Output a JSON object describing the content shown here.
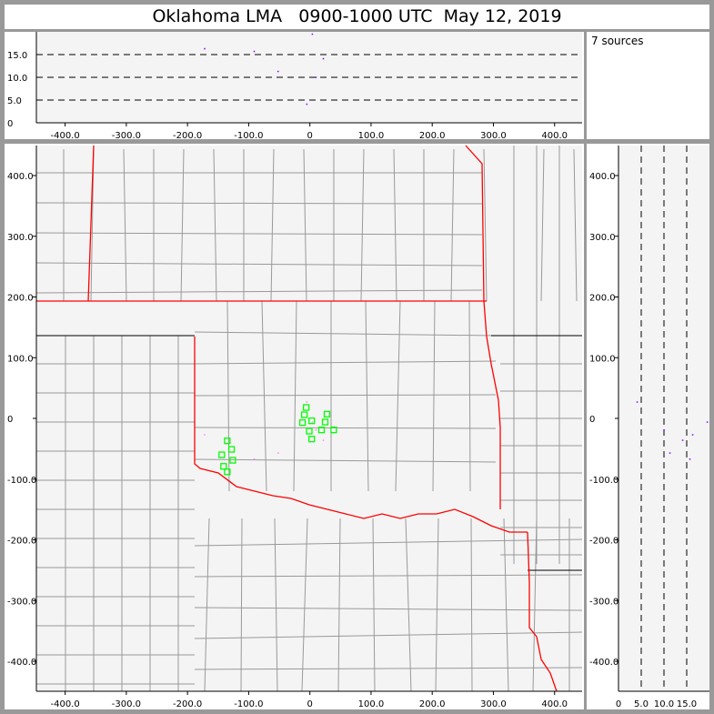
{
  "title": "Oklahoma LMA   0900-1000 UTC  May 12, 2019",
  "info": {
    "source_count_label": "7 sources"
  },
  "colors": {
    "background_panel": "#f4f4f4",
    "frame": "#999999",
    "state_border": "#ff0000",
    "county_line": "#999999",
    "station": "#00ff00",
    "source": "#8000ff"
  },
  "chart_data": [
    {
      "type": "scatter",
      "panel": "altitude-vs-east-west",
      "xlim": [
        -447,
        445
      ],
      "ylim": [
        0,
        20
      ],
      "x_ticks": [
        "-400.0",
        "-300.0",
        "-200.0",
        "-100.0",
        "0",
        "100.0",
        "200.0",
        "300.0",
        "400.0"
      ],
      "y_ticks": [
        "0",
        "5.0",
        "10.0",
        "15.0"
      ],
      "grid": "dashed at 5, 10, 15",
      "points": [
        [
          -172,
          16.3
        ],
        [
          -91,
          15.7
        ],
        [
          4,
          19.5
        ],
        [
          22,
          14.1
        ],
        [
          -52,
          11.3
        ],
        [
          10,
          10.0
        ],
        [
          -5,
          4.1
        ]
      ]
    },
    {
      "type": "scatter",
      "panel": "plan-view-map",
      "xlim": [
        -447,
        445
      ],
      "ylim": [
        -449,
        449
      ],
      "x_ticks": [
        "-400.0",
        "-300.0",
        "-200.0",
        "-100.0",
        "0",
        "100.0",
        "200.0",
        "300.0",
        "400.0"
      ],
      "y_ticks": [
        "400.0",
        "300.0",
        "200.0",
        "100.0",
        "0",
        "-100.0",
        "-200.0",
        "-300.0",
        "-400.0"
      ],
      "sources": [
        [
          -172,
          -27
        ],
        [
          -91,
          -67
        ],
        [
          4,
          -6
        ],
        [
          22,
          -36
        ],
        [
          -52,
          -57
        ],
        [
          10,
          -19
        ],
        [
          -5,
          27
        ]
      ],
      "stations": [
        [
          -6,
          18
        ],
        [
          -9,
          6
        ],
        [
          28,
          7
        ],
        [
          -12,
          -7
        ],
        [
          3,
          -4
        ],
        [
          25,
          -6
        ],
        [
          -1,
          -21
        ],
        [
          19,
          -19
        ],
        [
          39,
          -19
        ],
        [
          3,
          -34
        ],
        [
          -135,
          -37
        ],
        [
          -128,
          -51
        ],
        [
          -144,
          -60
        ],
        [
          -126,
          -69
        ],
        [
          -141,
          -79
        ],
        [
          -135,
          -88
        ]
      ]
    },
    {
      "type": "scatter",
      "panel": "north-south-vs-altitude",
      "xlim": [
        0,
        20
      ],
      "ylim": [
        -449,
        449
      ],
      "x_ticks": [
        "0",
        "5.0",
        "10.0",
        "15.0"
      ],
      "grid": "dashed at 5, 10, 15",
      "points": [
        [
          16.3,
          -27
        ],
        [
          15.7,
          -67
        ],
        [
          19.5,
          -6
        ],
        [
          14.1,
          -36
        ],
        [
          11.3,
          -57
        ],
        [
          10.0,
          -19
        ],
        [
          4.1,
          27
        ]
      ]
    }
  ]
}
